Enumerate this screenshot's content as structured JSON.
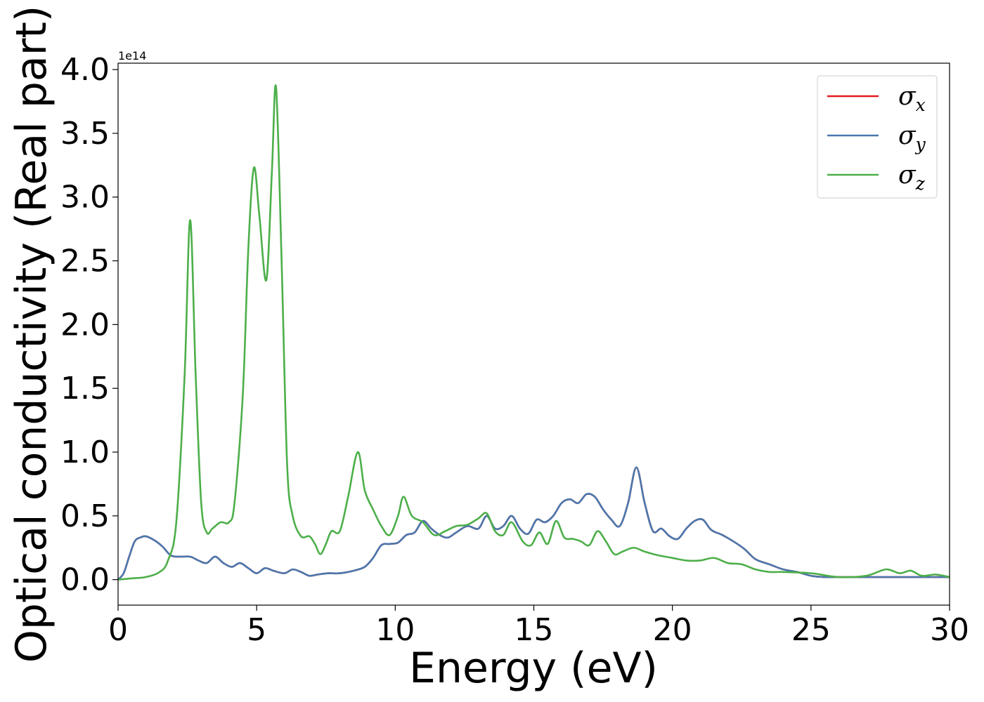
{
  "chart_data": {
    "type": "line",
    "xlabel": "Energy (eV)",
    "ylabel": "Optical conductivity (Real part)",
    "y_offset_label": "1e14",
    "xlim": [
      0,
      30
    ],
    "ylim": [
      -0.2,
      4.05
    ],
    "x_ticks": [
      0,
      5,
      10,
      15,
      20,
      25,
      30
    ],
    "x_tick_labels": [
      "0",
      "5",
      "10",
      "15",
      "20",
      "25",
      "30"
    ],
    "y_ticks": [
      0.0,
      0.5,
      1.0,
      1.5,
      2.0,
      2.5,
      3.0,
      3.5,
      4.0
    ],
    "y_tick_labels": [
      "0.0",
      "0.5",
      "1.0",
      "1.5",
      "2.0",
      "2.5",
      "3.0",
      "3.5",
      "4.0"
    ],
    "grid": false,
    "legend_position": "top-right",
    "series": [
      {
        "name": "σx",
        "legend_base": "σ",
        "legend_sub": "x",
        "color": "#e41a1c",
        "x": [
          0,
          0.2,
          0.4,
          0.6,
          0.8,
          1.0,
          1.3,
          1.6,
          1.9,
          2.2,
          2.6,
          2.9,
          3.2,
          3.5,
          3.8,
          4.1,
          4.4,
          4.7,
          5.0,
          5.3,
          5.6,
          6.0,
          6.3,
          6.6,
          6.9,
          7.2,
          7.6,
          8.0,
          8.5,
          8.9,
          9.2,
          9.5,
          9.8,
          10.1,
          10.4,
          10.7,
          11.0,
          11.3,
          11.6,
          11.9,
          12.2,
          12.6,
          13.0,
          13.3,
          13.6,
          13.9,
          14.2,
          14.5,
          14.8,
          15.1,
          15.4,
          15.7,
          16.0,
          16.3,
          16.6,
          16.9,
          17.2,
          17.5,
          17.8,
          18.1,
          18.4,
          18.7,
          19.0,
          19.3,
          19.6,
          19.9,
          20.2,
          20.5,
          20.8,
          21.1,
          21.4,
          21.8,
          22.2,
          22.6,
          23.0,
          23.5,
          24.0,
          24.5,
          25.0,
          25.5,
          26.0,
          27.0,
          28.0,
          29.0,
          30.0
        ],
        "y": [
          0.0,
          0.05,
          0.18,
          0.3,
          0.33,
          0.34,
          0.31,
          0.26,
          0.19,
          0.18,
          0.18,
          0.15,
          0.13,
          0.18,
          0.13,
          0.1,
          0.13,
          0.09,
          0.05,
          0.09,
          0.07,
          0.05,
          0.08,
          0.06,
          0.03,
          0.04,
          0.05,
          0.05,
          0.07,
          0.1,
          0.17,
          0.27,
          0.28,
          0.29,
          0.35,
          0.37,
          0.46,
          0.4,
          0.35,
          0.33,
          0.37,
          0.42,
          0.4,
          0.5,
          0.4,
          0.42,
          0.5,
          0.4,
          0.36,
          0.47,
          0.45,
          0.5,
          0.6,
          0.63,
          0.6,
          0.67,
          0.65,
          0.55,
          0.47,
          0.42,
          0.6,
          0.88,
          0.6,
          0.38,
          0.4,
          0.34,
          0.32,
          0.4,
          0.46,
          0.47,
          0.39,
          0.35,
          0.3,
          0.24,
          0.16,
          0.12,
          0.08,
          0.06,
          0.03,
          0.02,
          0.02,
          0.02,
          0.02,
          0.02,
          0.02
        ]
      },
      {
        "name": "σy",
        "legend_base": "σ",
        "legend_sub": "y",
        "color": "#4a78ae",
        "x": [
          0,
          0.2,
          0.4,
          0.6,
          0.8,
          1.0,
          1.3,
          1.6,
          1.9,
          2.2,
          2.6,
          2.9,
          3.2,
          3.5,
          3.8,
          4.1,
          4.4,
          4.7,
          5.0,
          5.3,
          5.6,
          6.0,
          6.3,
          6.6,
          6.9,
          7.2,
          7.6,
          8.0,
          8.5,
          8.9,
          9.2,
          9.5,
          9.8,
          10.1,
          10.4,
          10.7,
          11.0,
          11.3,
          11.6,
          11.9,
          12.2,
          12.6,
          13.0,
          13.3,
          13.6,
          13.9,
          14.2,
          14.5,
          14.8,
          15.1,
          15.4,
          15.7,
          16.0,
          16.3,
          16.6,
          16.9,
          17.2,
          17.5,
          17.8,
          18.1,
          18.4,
          18.7,
          19.0,
          19.3,
          19.6,
          19.9,
          20.2,
          20.5,
          20.8,
          21.1,
          21.4,
          21.8,
          22.2,
          22.6,
          23.0,
          23.5,
          24.0,
          24.5,
          25.0,
          25.5,
          26.0,
          27.0,
          28.0,
          29.0,
          30.0
        ],
        "y": [
          0.0,
          0.05,
          0.18,
          0.3,
          0.33,
          0.34,
          0.31,
          0.26,
          0.19,
          0.18,
          0.18,
          0.15,
          0.13,
          0.18,
          0.13,
          0.1,
          0.13,
          0.09,
          0.05,
          0.09,
          0.07,
          0.05,
          0.08,
          0.06,
          0.03,
          0.04,
          0.05,
          0.05,
          0.07,
          0.1,
          0.17,
          0.27,
          0.28,
          0.29,
          0.35,
          0.37,
          0.46,
          0.4,
          0.35,
          0.33,
          0.37,
          0.42,
          0.4,
          0.5,
          0.4,
          0.42,
          0.5,
          0.4,
          0.36,
          0.47,
          0.45,
          0.5,
          0.6,
          0.63,
          0.6,
          0.67,
          0.65,
          0.55,
          0.47,
          0.42,
          0.6,
          0.88,
          0.6,
          0.38,
          0.4,
          0.34,
          0.32,
          0.4,
          0.46,
          0.47,
          0.39,
          0.35,
          0.3,
          0.24,
          0.16,
          0.12,
          0.08,
          0.06,
          0.03,
          0.02,
          0.02,
          0.02,
          0.02,
          0.02,
          0.02
        ]
      },
      {
        "name": "σz",
        "legend_base": "σ",
        "legend_sub": "z",
        "color": "#4daf4a",
        "x": [
          0,
          0.5,
          1.0,
          1.5,
          1.8,
          2.1,
          2.4,
          2.6,
          2.8,
          3.0,
          3.2,
          3.4,
          3.7,
          4.0,
          4.2,
          4.5,
          4.7,
          4.9,
          5.1,
          5.35,
          5.55,
          5.7,
          5.9,
          6.1,
          6.3,
          6.6,
          6.9,
          7.1,
          7.3,
          7.5,
          7.7,
          8.0,
          8.3,
          8.65,
          8.9,
          9.2,
          9.5,
          9.8,
          10.1,
          10.3,
          10.6,
          11.0,
          11.4,
          11.8,
          12.2,
          12.6,
          13.0,
          13.3,
          13.6,
          13.9,
          14.2,
          14.6,
          14.9,
          15.2,
          15.5,
          15.8,
          16.1,
          16.4,
          16.7,
          17.0,
          17.3,
          17.6,
          17.9,
          18.2,
          18.6,
          19.0,
          19.5,
          20.0,
          20.5,
          21.0,
          21.5,
          22.0,
          22.5,
          23.0,
          23.5,
          24.0,
          25.0,
          26.0,
          27.0,
          27.7,
          28.2,
          28.6,
          29.0,
          29.5,
          30.0
        ],
        "y": [
          0.0,
          0.01,
          0.02,
          0.06,
          0.15,
          0.45,
          1.6,
          2.82,
          1.6,
          0.6,
          0.37,
          0.4,
          0.45,
          0.45,
          0.6,
          1.45,
          2.6,
          3.23,
          2.85,
          2.35,
          3.2,
          3.86,
          2.5,
          0.9,
          0.5,
          0.34,
          0.34,
          0.28,
          0.2,
          0.28,
          0.38,
          0.38,
          0.65,
          1.0,
          0.7,
          0.55,
          0.42,
          0.35,
          0.5,
          0.65,
          0.5,
          0.45,
          0.35,
          0.38,
          0.42,
          0.43,
          0.48,
          0.52,
          0.38,
          0.35,
          0.45,
          0.3,
          0.27,
          0.37,
          0.28,
          0.46,
          0.33,
          0.32,
          0.3,
          0.27,
          0.38,
          0.3,
          0.2,
          0.22,
          0.25,
          0.22,
          0.19,
          0.17,
          0.15,
          0.15,
          0.17,
          0.13,
          0.12,
          0.08,
          0.06,
          0.06,
          0.05,
          0.02,
          0.03,
          0.08,
          0.05,
          0.07,
          0.03,
          0.04,
          0.02
        ]
      }
    ]
  }
}
